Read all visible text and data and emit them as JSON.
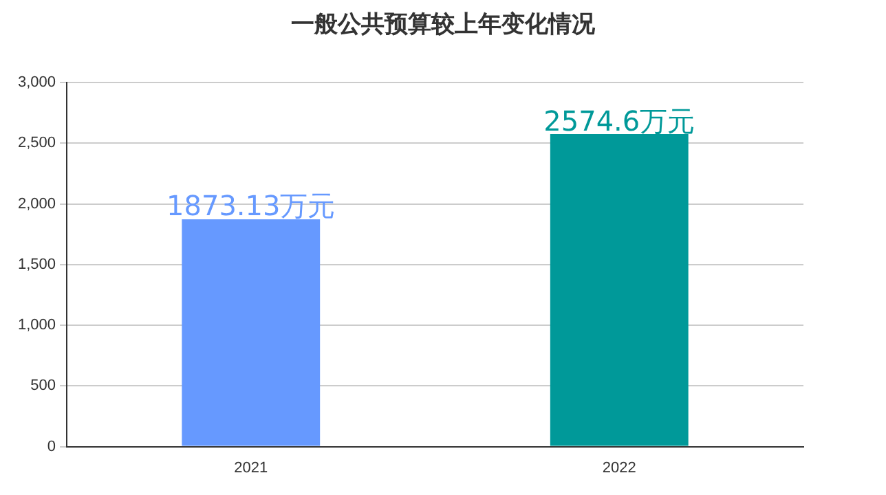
{
  "chart_data": {
    "type": "bar",
    "title": "一般公共预算较上年变化情况",
    "categories": [
      "2021",
      "2022"
    ],
    "values": [
      1873.13,
      2574.6
    ],
    "colors": [
      "#6699ff",
      "#009999"
    ],
    "value_labels": [
      "1873.13万元",
      "2574.6万元"
    ],
    "ylim": [
      0,
      3000
    ],
    "yticks": [
      0,
      500,
      {
        "value": 1000,
        "label": "1,000"
      },
      {
        "value": 1500,
        "label": "1,500"
      },
      {
        "value": 2000,
        "label": "2,000"
      },
      {
        "value": 2500,
        "label": "2,500"
      },
      {
        "value": 3000,
        "label": "3,000"
      }
    ],
    "grid": "y",
    "legend": false
  }
}
